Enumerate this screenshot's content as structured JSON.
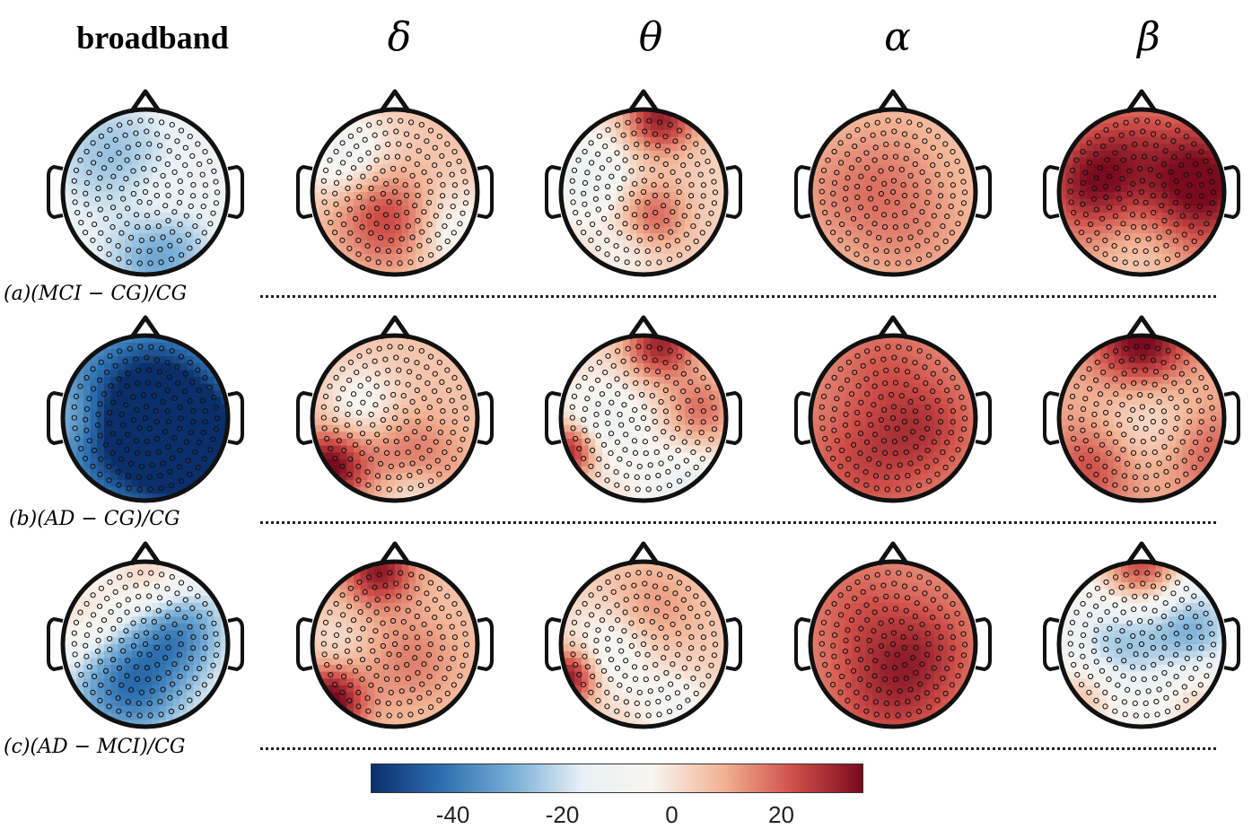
{
  "columns": [
    {
      "id": "broadband",
      "title": "broadband"
    },
    {
      "id": "delta",
      "title": "δ"
    },
    {
      "id": "theta",
      "title": "θ"
    },
    {
      "id": "alpha",
      "title": "α"
    },
    {
      "id": "beta",
      "title": "β"
    }
  ],
  "rows": [
    {
      "id": "a",
      "label": "(a)(MCI − CG)/CG"
    },
    {
      "id": "b",
      "label": "(b)(AD − CG)/CG"
    },
    {
      "id": "c",
      "label": "(c)(AD − MCI)/CG"
    }
  ],
  "colorbar": {
    "min": -55,
    "max": 35,
    "ticks": [
      "-40",
      "-20",
      "0",
      "20"
    ],
    "tick_values": [
      -40,
      -20,
      0,
      20
    ],
    "colors": [
      "#0b2f6b",
      "#2d6fb0",
      "#78aed6",
      "#e8f0f5",
      "#f8f5f0",
      "#f2b395",
      "#d1504a",
      "#7a0a1e"
    ]
  },
  "maps": {
    "a": {
      "broadband": {
        "base": -8,
        "blobs": [
          [
            0.45,
            0.7,
            14,
            0.22
          ],
          [
            0.3,
            0.3,
            -18,
            0.3
          ],
          [
            0.55,
            0.85,
            -30,
            0.25
          ],
          [
            0.6,
            0.55,
            6,
            0.15
          ]
        ]
      },
      "delta": {
        "base": 6,
        "blobs": [
          [
            0.2,
            0.3,
            -20,
            0.2
          ],
          [
            0.5,
            0.7,
            16,
            0.2
          ],
          [
            0.85,
            0.75,
            -14,
            0.2
          ],
          [
            0.3,
            0.5,
            10,
            0.2
          ]
        ]
      },
      "theta": {
        "base": 3,
        "blobs": [
          [
            0.6,
            0.05,
            28,
            0.15
          ],
          [
            0.15,
            0.4,
            -16,
            0.2
          ],
          [
            0.55,
            0.65,
            18,
            0.15
          ],
          [
            0.4,
            0.85,
            -8,
            0.15
          ]
        ]
      },
      "alpha": {
        "base": 6,
        "blobs": [
          [
            0.5,
            0.3,
            4,
            0.2
          ],
          [
            0.6,
            0.7,
            8,
            0.25
          ],
          [
            0.2,
            0.5,
            8,
            0.25
          ]
        ]
      },
      "beta": {
        "base": 12,
        "blobs": [
          [
            0.85,
            0.45,
            26,
            0.25
          ],
          [
            0.2,
            0.45,
            20,
            0.2
          ],
          [
            0.5,
            0.9,
            -8,
            0.2
          ],
          [
            0.4,
            0.2,
            8,
            0.2
          ]
        ]
      }
    },
    "b": {
      "broadband": {
        "base": -28,
        "blobs": [
          [
            0.6,
            0.25,
            -8,
            0.2
          ],
          [
            0.1,
            0.5,
            10,
            0.15
          ],
          [
            0.5,
            0.55,
            -40,
            0.3
          ],
          [
            0.85,
            0.7,
            -30,
            0.25
          ]
        ]
      },
      "delta": {
        "base": 6,
        "blobs": [
          [
            0.1,
            0.8,
            30,
            0.15
          ],
          [
            0.6,
            0.8,
            16,
            0.2
          ],
          [
            0.3,
            0.4,
            -12,
            0.15
          ],
          [
            0.6,
            0.95,
            -16,
            0.15
          ]
        ]
      },
      "theta": {
        "base": 2,
        "blobs": [
          [
            0.6,
            0.05,
            28,
            0.15
          ],
          [
            0.05,
            0.7,
            32,
            0.12
          ],
          [
            0.25,
            0.55,
            -14,
            0.2
          ],
          [
            0.85,
            0.45,
            16,
            0.15
          ],
          [
            0.75,
            0.95,
            -16,
            0.18
          ]
        ]
      },
      "alpha": {
        "base": 14,
        "blobs": [
          [
            0.35,
            0.75,
            10,
            0.25
          ],
          [
            0.7,
            0.55,
            10,
            0.2
          ],
          [
            0.45,
            0.2,
            6,
            0.2
          ]
        ]
      },
      "beta": {
        "base": 10,
        "blobs": [
          [
            0.5,
            0.05,
            28,
            0.2
          ],
          [
            0.55,
            0.5,
            -12,
            0.25
          ],
          [
            0.2,
            0.8,
            14,
            0.2
          ],
          [
            0.9,
            0.7,
            12,
            0.2
          ]
        ]
      }
    },
    "c": {
      "broadband": {
        "base": -12,
        "blobs": [
          [
            0.55,
            0.1,
            18,
            0.2
          ],
          [
            0.1,
            0.35,
            14,
            0.2
          ],
          [
            0.4,
            0.75,
            -30,
            0.25
          ],
          [
            0.7,
            0.4,
            -24,
            0.2
          ]
        ]
      },
      "delta": {
        "base": 6,
        "blobs": [
          [
            0.4,
            0.05,
            26,
            0.15
          ],
          [
            0.1,
            0.85,
            32,
            0.15
          ],
          [
            0.15,
            0.5,
            -6,
            0.15
          ],
          [
            0.6,
            0.6,
            10,
            0.2
          ]
        ]
      },
      "theta": {
        "base": 4,
        "blobs": [
          [
            0.05,
            0.7,
            32,
            0.12
          ],
          [
            0.3,
            0.55,
            -14,
            0.2
          ],
          [
            0.7,
            0.9,
            -12,
            0.15
          ],
          [
            0.55,
            0.3,
            10,
            0.2
          ]
        ]
      },
      "alpha": {
        "base": 14,
        "blobs": [
          [
            0.5,
            0.75,
            14,
            0.25
          ],
          [
            0.3,
            0.3,
            6,
            0.2
          ],
          [
            0.7,
            0.5,
            8,
            0.2
          ]
        ]
      },
      "beta": {
        "base": -6,
        "blobs": [
          [
            0.5,
            0.03,
            30,
            0.18
          ],
          [
            0.35,
            0.5,
            -18,
            0.2
          ],
          [
            0.8,
            0.4,
            -22,
            0.2
          ],
          [
            0.15,
            0.8,
            14,
            0.15
          ],
          [
            0.85,
            0.85,
            10,
            0.15
          ]
        ]
      }
    }
  }
}
